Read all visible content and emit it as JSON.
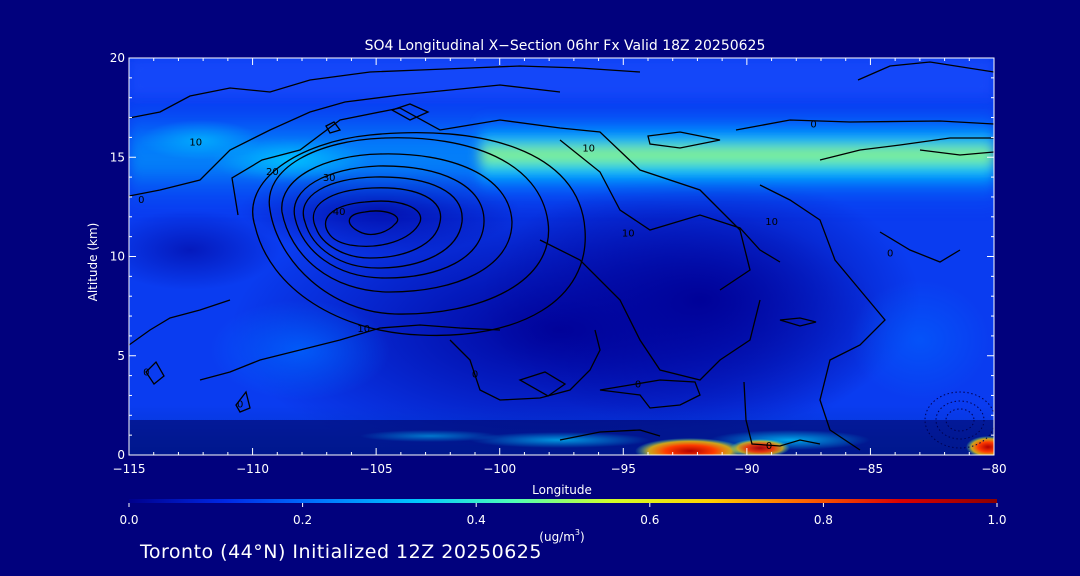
{
  "chart_data": {
    "type": "contour",
    "title": "SO4 Longitudinal X−Section 06hr  Fx Valid 18Z 20250625",
    "xlabel": "Longitude",
    "ylabel": "Altitude (km)",
    "xlim": [
      -115,
      -80
    ],
    "ylim": [
      0,
      20
    ],
    "x_ticks": [
      -115,
      -110,
      -105,
      -100,
      -95,
      -90,
      -85,
      -80
    ],
    "x_tick_labels": [
      "−115",
      "−110",
      "−105",
      "−100",
      "−95",
      "−90",
      "−85",
      "−80"
    ],
    "y_ticks": [
      0,
      5,
      10,
      15,
      20
    ],
    "y_tick_labels": [
      "0",
      "5",
      "10",
      "15",
      "20"
    ],
    "colorbar": {
      "min": 0.0,
      "max": 1.0,
      "ticks": [
        0.0,
        0.2,
        0.4,
        0.6,
        0.8,
        1.0
      ],
      "tick_labels": [
        "0.0",
        "0.2",
        "0.4",
        "0.6",
        "0.8",
        "1.0"
      ],
      "unit_label": "(ug/m",
      "unit_superscript": "3",
      "unit_close": ")",
      "colors": [
        "#00008c",
        "#0028e6",
        "#0078ff",
        "#00c8ff",
        "#50ffb4",
        "#d2ff28",
        "#ffd200",
        "#ff6400",
        "#dc0000",
        "#8c0000"
      ]
    },
    "contour_labels": [
      {
        "text": "10",
        "lon": -112.3,
        "alt": 15.8
      },
      {
        "text": "0",
        "lon": -114.5,
        "alt": 12.9
      },
      {
        "text": "20",
        "lon": -109.2,
        "alt": 14.3
      },
      {
        "text": "30",
        "lon": -106.9,
        "alt": 14.0
      },
      {
        "text": "40",
        "lon": -106.5,
        "alt": 12.3
      },
      {
        "text": "10",
        "lon": -96.4,
        "alt": 15.5
      },
      {
        "text": "0",
        "lon": -87.3,
        "alt": 16.7
      },
      {
        "text": "10",
        "lon": -94.8,
        "alt": 11.2
      },
      {
        "text": "10",
        "lon": -89.0,
        "alt": 11.8
      },
      {
        "text": "0",
        "lon": -84.2,
        "alt": 10.2
      },
      {
        "text": "10",
        "lon": -105.5,
        "alt": 6.4
      },
      {
        "text": "0",
        "lon": -101.0,
        "alt": 4.1
      },
      {
        "text": "0",
        "lon": -94.4,
        "alt": 3.6
      },
      {
        "text": "0",
        "lon": -89.1,
        "alt": 0.5
      },
      {
        "text": "0",
        "lon": -114.3,
        "alt": 4.2
      },
      {
        "text": "0",
        "lon": -110.5,
        "alt": 2.6
      }
    ]
  },
  "footer": {
    "text": "Toronto (44°N) Initialized 12Z 20250625"
  }
}
